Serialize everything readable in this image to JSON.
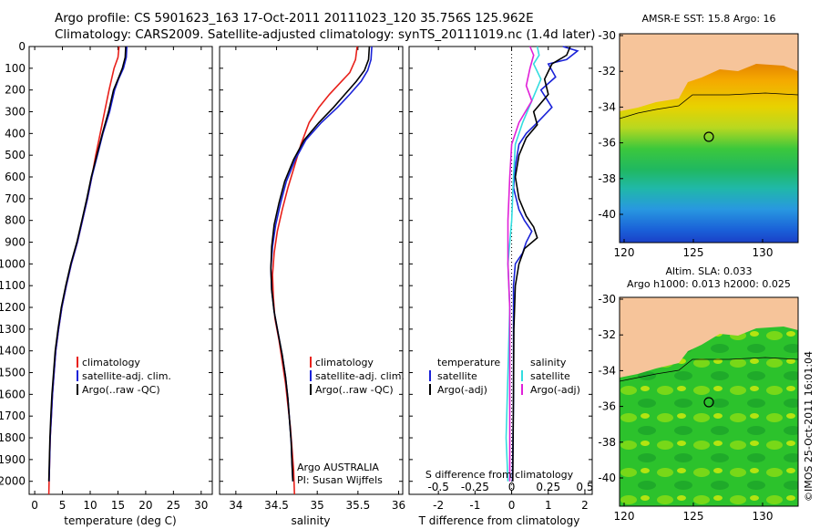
{
  "header": {
    "line1": "Argo profile: CS 5901623_163 17-Oct-2011 20111023_120 35.756S 125.962E",
    "line2": "Climatology: CARS2009. Satellite-adjusted climatology: synTS_20111019.nc (1.4d later)"
  },
  "colors": {
    "climatology": "#e8201a",
    "satellite": "#1a22d8",
    "argo": "#000000",
    "sal_satellite": "#33dde0",
    "sal_argo": "#e020d8",
    "land": "#f6c49a"
  },
  "chart_data": [
    {
      "type": "line",
      "name": "temperature-panel",
      "xlabel": "temperature (deg C)",
      "ylabel": "",
      "xlim": [
        -1,
        32
      ],
      "ylim": [
        2060,
        0
      ],
      "xticks": [
        0,
        5,
        10,
        15,
        20,
        25,
        30
      ],
      "yticks": [
        0,
        100,
        200,
        300,
        400,
        500,
        600,
        700,
        800,
        900,
        1000,
        1100,
        1200,
        1300,
        1400,
        1500,
        1600,
        1700,
        1800,
        1900,
        2000
      ],
      "legend": [
        "climatology",
        "satellite-adj. clim.",
        "Argo(..raw -QC)"
      ],
      "legend_position": "lower-center",
      "series": [
        {
          "name": "climatology",
          "color_key": "climatology",
          "points": [
            [
              15.2,
              0
            ],
            [
              15.0,
              50
            ],
            [
              14.3,
              100
            ],
            [
              13.4,
              200
            ],
            [
              12.6,
              300
            ],
            [
              11.8,
              400
            ],
            [
              11.0,
              500
            ],
            [
              10.3,
              600
            ],
            [
              9.5,
              700
            ],
            [
              8.6,
              800
            ],
            [
              7.7,
              900
            ],
            [
              6.6,
              1000
            ],
            [
              5.7,
              1100
            ],
            [
              4.9,
              1200
            ],
            [
              4.3,
              1300
            ],
            [
              3.8,
              1400
            ],
            [
              3.5,
              1500
            ],
            [
              3.2,
              1600
            ],
            [
              3.0,
              1700
            ],
            [
              2.8,
              1800
            ],
            [
              2.7,
              1900
            ],
            [
              2.6,
              2000
            ],
            [
              2.55,
              2060
            ]
          ]
        },
        {
          "name": "satellite-adj. clim.",
          "color_key": "satellite",
          "points": [
            [
              16.6,
              0
            ],
            [
              16.5,
              50
            ],
            [
              16.0,
              100
            ],
            [
              15.1,
              150
            ],
            [
              14.4,
              200
            ],
            [
              13.5,
              300
            ],
            [
              12.3,
              400
            ],
            [
              11.3,
              500
            ],
            [
              10.3,
              600
            ],
            [
              9.5,
              700
            ],
            [
              8.6,
              800
            ],
            [
              7.7,
              900
            ],
            [
              6.6,
              1000
            ],
            [
              5.7,
              1100
            ],
            [
              4.9,
              1200
            ],
            [
              4.3,
              1300
            ],
            [
              3.8,
              1400
            ],
            [
              3.5,
              1500
            ],
            [
              3.2,
              1600
            ],
            [
              3.0,
              1700
            ],
            [
              2.8,
              1800
            ],
            [
              2.7,
              1900
            ],
            [
              2.6,
              2000
            ]
          ]
        },
        {
          "name": "Argo(..raw -QC)",
          "color_key": "argo",
          "points": [
            [
              16.4,
              0
            ],
            [
              16.3,
              50
            ],
            [
              15.8,
              100
            ],
            [
              15.0,
              150
            ],
            [
              14.2,
              200
            ],
            [
              13.3,
              300
            ],
            [
              12.2,
              400
            ],
            [
              11.2,
              500
            ],
            [
              10.2,
              600
            ],
            [
              9.4,
              700
            ],
            [
              8.5,
              800
            ],
            [
              7.6,
              900
            ],
            [
              6.5,
              1000
            ],
            [
              5.6,
              1100
            ],
            [
              4.8,
              1200
            ],
            [
              4.2,
              1300
            ],
            [
              3.7,
              1400
            ],
            [
              3.4,
              1500
            ],
            [
              3.1,
              1600
            ],
            [
              2.9,
              1700
            ],
            [
              2.75,
              1800
            ],
            [
              2.65,
              1900
            ],
            [
              2.55,
              2000
            ]
          ]
        }
      ]
    },
    {
      "type": "line",
      "name": "salinity-panel",
      "xlabel": "salinity",
      "xlim": [
        33.8,
        36.05
      ],
      "ylim": [
        2060,
        0
      ],
      "xticks": [
        34,
        34.5,
        35,
        35.5,
        36
      ],
      "legend": [
        "climatology",
        "satellite-adj. clim.",
        "Argo(..raw -QC)"
      ],
      "legend_position": "lower-center",
      "annotation": [
        "Argo AUSTRALIA",
        "PI: Susan Wijffels"
      ],
      "series": [
        {
          "name": "climatology",
          "color_key": "climatology",
          "points": [
            [
              35.49,
              0
            ],
            [
              35.47,
              60
            ],
            [
              35.4,
              120
            ],
            [
              35.3,
              160
            ],
            [
              35.15,
              220
            ],
            [
              35.02,
              280
            ],
            [
              34.9,
              350
            ],
            [
              34.8,
              450
            ],
            [
              34.72,
              550
            ],
            [
              34.64,
              650
            ],
            [
              34.57,
              750
            ],
            [
              34.51,
              850
            ],
            [
              34.47,
              950
            ],
            [
              34.45,
              1050
            ],
            [
              34.46,
              1150
            ],
            [
              34.48,
              1250
            ],
            [
              34.53,
              1350
            ],
            [
              34.57,
              1450
            ],
            [
              34.61,
              1550
            ],
            [
              34.64,
              1650
            ],
            [
              34.67,
              1750
            ],
            [
              34.69,
              1850
            ],
            [
              34.71,
              1950
            ],
            [
              34.72,
              2060
            ]
          ]
        },
        {
          "name": "satellite-adj. clim.",
          "color_key": "satellite",
          "points": [
            [
              35.67,
              0
            ],
            [
              35.66,
              60
            ],
            [
              35.62,
              110
            ],
            [
              35.54,
              160
            ],
            [
              35.4,
              220
            ],
            [
              35.25,
              280
            ],
            [
              35.05,
              350
            ],
            [
              34.86,
              430
            ],
            [
              34.73,
              520
            ],
            [
              34.62,
              620
            ],
            [
              34.55,
              720
            ],
            [
              34.49,
              820
            ],
            [
              34.45,
              920
            ],
            [
              34.43,
              1020
            ],
            [
              34.44,
              1120
            ],
            [
              34.47,
              1220
            ],
            [
              34.52,
              1320
            ],
            [
              34.57,
              1420
            ],
            [
              34.61,
              1520
            ],
            [
              34.64,
              1620
            ],
            [
              34.66,
              1720
            ],
            [
              34.68,
              1820
            ],
            [
              34.69,
              1920
            ],
            [
              34.7,
              2000
            ]
          ]
        },
        {
          "name": "Argo(..raw -QC)",
          "color_key": "argo",
          "points": [
            [
              35.64,
              0
            ],
            [
              35.63,
              60
            ],
            [
              35.58,
              110
            ],
            [
              35.48,
              160
            ],
            [
              35.34,
              220
            ],
            [
              35.2,
              280
            ],
            [
              35.02,
              350
            ],
            [
              34.84,
              430
            ],
            [
              34.71,
              520
            ],
            [
              34.6,
              620
            ],
            [
              34.53,
              720
            ],
            [
              34.47,
              820
            ],
            [
              34.44,
              920
            ],
            [
              34.43,
              1020
            ],
            [
              34.44,
              1120
            ],
            [
              34.47,
              1220
            ],
            [
              34.52,
              1320
            ],
            [
              34.57,
              1420
            ],
            [
              34.61,
              1520
            ],
            [
              34.64,
              1620
            ],
            [
              34.66,
              1720
            ],
            [
              34.68,
              1820
            ],
            [
              34.69,
              1920
            ],
            [
              34.7,
              2000
            ]
          ]
        }
      ]
    },
    {
      "type": "line",
      "name": "difference-panel",
      "xlabel": "T difference from climatology",
      "top_axis_label": "S difference from climatology",
      "xlim": [
        -2.8,
        2.2
      ],
      "ylim": [
        2060,
        0
      ],
      "xticks": [
        -2,
        -1,
        0,
        1,
        2
      ],
      "top_ticks": [
        "-0.5",
        "-0.25",
        "0",
        "0.25",
        "0.5"
      ],
      "legend_temperature": [
        "temperature",
        "satellite",
        "Argo(-adj)"
      ],
      "legend_salinity": [
        "salinity",
        "satellite",
        "Argo(-adj)"
      ],
      "series": [
        {
          "name": "temperature satellite",
          "color_key": "satellite",
          "points": [
            [
              1.4,
              0
            ],
            [
              1.8,
              20
            ],
            [
              1.5,
              60
            ],
            [
              1.0,
              80
            ],
            [
              1.2,
              140
            ],
            [
              0.8,
              200
            ],
            [
              1.1,
              280
            ],
            [
              0.7,
              350
            ],
            [
              0.4,
              400
            ],
            [
              0.2,
              450
            ],
            [
              0.1,
              550
            ],
            [
              0.05,
              650
            ],
            [
              0.2,
              750
            ],
            [
              0.35,
              800
            ],
            [
              0.55,
              850
            ],
            [
              0.4,
              900
            ],
            [
              0.3,
              950
            ],
            [
              0.1,
              1000
            ],
            [
              0.05,
              1100
            ],
            [
              0.05,
              1300
            ],
            [
              0.05,
              1600
            ],
            [
              0.02,
              2000
            ]
          ]
        },
        {
          "name": "temperature Argo(-adj)",
          "color_key": "argo",
          "points": [
            [
              1.6,
              0
            ],
            [
              1.5,
              40
            ],
            [
              1.1,
              80
            ],
            [
              0.9,
              150
            ],
            [
              1.0,
              220
            ],
            [
              0.6,
              300
            ],
            [
              0.7,
              360
            ],
            [
              0.4,
              420
            ],
            [
              0.2,
              500
            ],
            [
              0.1,
              600
            ],
            [
              0.2,
              700
            ],
            [
              0.4,
              780
            ],
            [
              0.6,
              830
            ],
            [
              0.7,
              880
            ],
            [
              0.35,
              930
            ],
            [
              0.2,
              1000
            ],
            [
              0.1,
              1100
            ],
            [
              0.06,
              1300
            ],
            [
              0.05,
              1600
            ],
            [
              0.03,
              2000
            ]
          ]
        },
        {
          "name": "salinity satellite",
          "color_key": "sal_satellite",
          "points": [
            [
              0.7,
              0
            ],
            [
              0.75,
              40
            ],
            [
              0.6,
              80
            ],
            [
              0.8,
              150
            ],
            [
              0.55,
              250
            ],
            [
              0.3,
              350
            ],
            [
              0.1,
              450
            ],
            [
              0.05,
              600
            ],
            [
              0.0,
              800
            ],
            [
              -0.1,
              1000
            ],
            [
              -0.05,
              1200
            ],
            [
              -0.1,
              1500
            ],
            [
              -0.15,
              1800
            ],
            [
              -0.1,
              2000
            ]
          ]
        },
        {
          "name": "salinity Argo(-adj)",
          "color_key": "sal_argo",
          "points": [
            [
              0.5,
              0
            ],
            [
              0.6,
              40
            ],
            [
              0.5,
              100
            ],
            [
              0.4,
              180
            ],
            [
              0.55,
              250
            ],
            [
              0.2,
              350
            ],
            [
              0.0,
              450
            ],
            [
              -0.05,
              600
            ],
            [
              -0.1,
              800
            ],
            [
              -0.1,
              1000
            ],
            [
              -0.05,
              1200
            ],
            [
              -0.05,
              1500
            ],
            [
              -0.05,
              2000
            ]
          ]
        }
      ]
    }
  ],
  "maps": {
    "sst": {
      "title": "AMSR-E SST: 15.8 Argo: 16",
      "yticks": [
        "-30",
        "-32",
        "-34",
        "-36",
        "-38",
        "-40"
      ],
      "xticks": [
        "120",
        "125",
        "130"
      ],
      "marker": [
        125.96,
        -35.76
      ]
    },
    "sla": {
      "title1": "Altim. SLA: 0.033",
      "title2": "Argo h1000: 0.013 h2000: 0.025",
      "yticks": [
        "-30",
        "-32",
        "-34",
        "-36",
        "-38",
        "-40"
      ],
      "xticks": [
        "120",
        "125",
        "130"
      ],
      "marker": [
        125.96,
        -35.76
      ]
    }
  },
  "footer": "©IMOS 25-Oct-2011 16:01:04"
}
